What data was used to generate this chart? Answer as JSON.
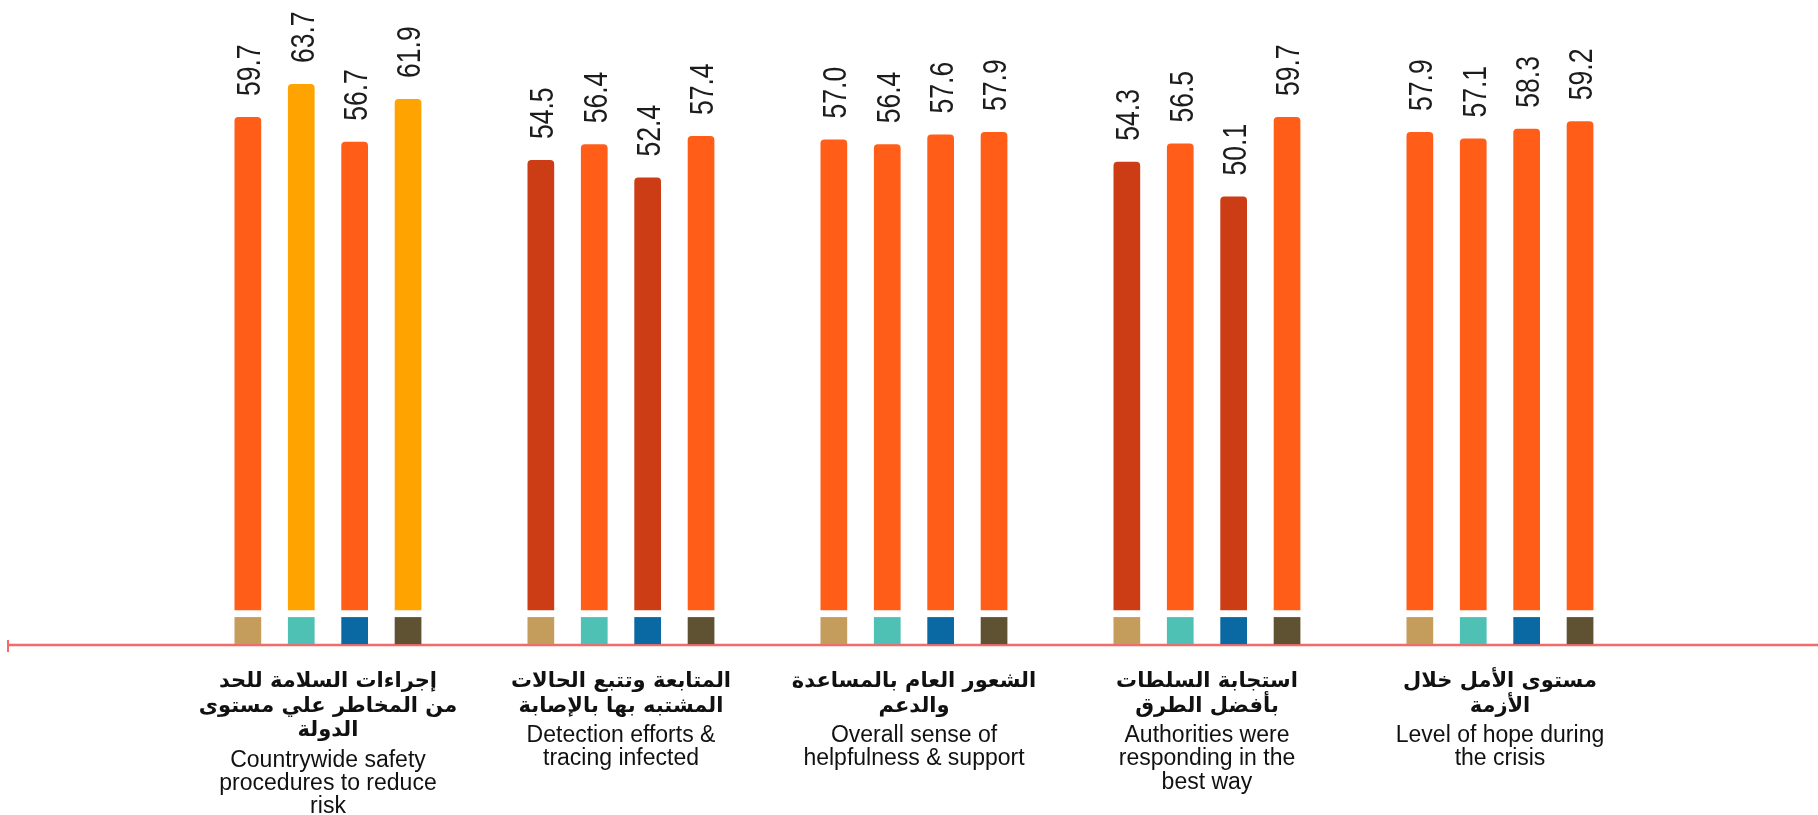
{
  "chart_data": {
    "type": "bar",
    "categories": [
      "إجراءات السلامة للحد\nمن المخاطر علي مستوى\nالدولة\nCountrywide safety\nprocedures to reduce\nrisk",
      "المتابعة وتتبع الحالات\nالمشتبه بها بالإصابة\nDetection efforts &\ntracing infected",
      "الشعور العام بالمساعدة\nوالدعم\nOverall sense of\nhelpfulness & support",
      "استجابة السلطات\nبأفضل الطرق\nAuthorities were\nresponding in the\nbest way",
      "مستوى الأمل خلال\nالأزمة\nLevel of hope during\nthe crisis"
    ],
    "series": [
      {
        "color": "#c49c5c",
        "colors": [
          "#ff5d18",
          "#cc3d15",
          "#ff5d18",
          "#cc3d15",
          "#ff5d18"
        ],
        "values": [
          59.7,
          54.5,
          57.0,
          54.3,
          57.9
        ],
        "value_labels": [
          "59.7",
          "54.5",
          "57.0",
          "54.3",
          "57.9"
        ]
      },
      {
        "color": "#4fc1b4",
        "colors": [
          "#ffa300",
          "#ff5d18",
          "#ff5d18",
          "#ff5d18",
          "#ff5d18"
        ],
        "values": [
          63.7,
          56.4,
          56.4,
          56.5,
          57.1
        ],
        "value_labels": [
          "63.7",
          "56.4",
          "56.4",
          "56.5",
          "57.1"
        ]
      },
      {
        "color": "#0a68a2",
        "colors": [
          "#ff5d18",
          "#cc3d15",
          "#ff5d18",
          "#cc3d15",
          "#ff5d18"
        ],
        "values": [
          56.7,
          52.4,
          57.6,
          50.1,
          58.3
        ],
        "value_labels": [
          "56.7",
          "52.4",
          "57.6",
          "50.1",
          "58.3"
        ]
      },
      {
        "color": "#5e5232",
        "colors": [
          "#ffa300",
          "#ff5d18",
          "#ff5d18",
          "#ff5d18",
          "#ff5d18"
        ],
        "values": [
          61.9,
          57.4,
          57.9,
          59.7,
          59.2
        ],
        "value_labels": [
          "61.9",
          "57.4",
          "57.9",
          "59.7",
          "59.2"
        ]
      }
    ]
  }
}
